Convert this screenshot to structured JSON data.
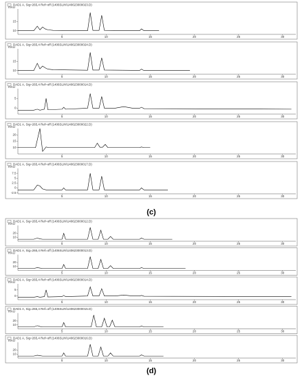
{
  "chart_data": [
    {
      "type": "line",
      "ylabel": "mAU",
      "xlim": [
        0,
        31.5
      ],
      "xticks": [
        5,
        10,
        15,
        20,
        25,
        30
      ],
      "ylim": [
        8,
        22
      ],
      "yticks": [
        10,
        15
      ],
      "series": [
        {
          "name": "DAD1 A, Sig=265,4 Ref=off (1406SLIN\\140623000023.D)",
          "color": "#000000",
          "x": [
            0,
            1.8,
            2.2,
            2.5,
            2.8,
            3.1,
            3.4,
            4,
            7.9,
            8.2,
            8.5,
            9.2,
            9.5,
            9.8,
            13.8,
            14,
            14.3,
            16
          ],
          "values": [
            10,
            10,
            12.5,
            10.5,
            12,
            11,
            10.5,
            10.2,
            10,
            20,
            10.2,
            10.2,
            18.5,
            10.2,
            10,
            11,
            10,
            10
          ]
        }
      ]
    },
    {
      "type": "line",
      "ylabel": "mAU",
      "xlim": [
        0,
        31.5
      ],
      "xticks": [
        5,
        10,
        15,
        20,
        25,
        30
      ],
      "ylim": [
        8,
        22
      ],
      "yticks": [
        10,
        15
      ],
      "series": [
        {
          "name": "DAD1 A, Sig=265,4 Ref=off (1406SLIN\\140623000024.D)",
          "color": "#000000",
          "x": [
            0,
            1.8,
            2.2,
            2.5,
            2.8,
            3.1,
            3.4,
            4,
            7.9,
            8.2,
            8.5,
            9.2,
            9.5,
            9.8,
            13.8,
            14,
            14.3,
            19.5
          ],
          "values": [
            10,
            10,
            14,
            11,
            12.5,
            11.5,
            10.8,
            10.5,
            10.2,
            20,
            10.3,
            10.3,
            17,
            10.3,
            10.1,
            10.8,
            10,
            10
          ]
        }
      ]
    },
    {
      "type": "line",
      "ylabel": "mAU",
      "xlim": [
        0,
        31.5
      ],
      "xticks": [
        5,
        10,
        15,
        20,
        25,
        30
      ],
      "ylim": [
        -3,
        10
      ],
      "yticks": [
        0,
        5
      ],
      "series": [
        {
          "name": "DAD1 A, Sig=265,4 Ref=off (1406SLIN\\140623000014.D)",
          "color": "#000000",
          "x": [
            0,
            1.8,
            2.2,
            2.5,
            3,
            3.2,
            3.4,
            5,
            5.2,
            5.4,
            7.9,
            8.2,
            8.5,
            9.2,
            9.5,
            9.8,
            11,
            12,
            13,
            13.8,
            14,
            14.3,
            31
          ],
          "values": [
            -1,
            -1,
            -0.5,
            -1,
            -0.5,
            5,
            -0.8,
            -0.5,
            0.5,
            -0.5,
            0,
            7.5,
            0,
            0,
            6,
            0,
            0,
            0.8,
            0,
            0,
            0.5,
            -0.2,
            -0.5
          ]
        }
      ]
    },
    {
      "type": "line",
      "ylabel": "mAU",
      "xlim": [
        0,
        31.5
      ],
      "xticks": [
        5,
        10,
        15,
        20,
        25,
        30
      ],
      "ylim": [
        5,
        25
      ],
      "yticks": [
        10,
        15,
        20
      ],
      "series": [
        {
          "name": "DAD1 A, Sig=265,4 Ref=off (1406SLIN\\140623000022.D)",
          "color": "#000000",
          "x": [
            0,
            2,
            2.5,
            2.8,
            3.2,
            3.5,
            8.7,
            9,
            9.3,
            9.6,
            9.9,
            10.2,
            13.8,
            14,
            14.3,
            15
          ],
          "values": [
            10,
            10,
            25,
            7,
            10.5,
            10,
            10,
            13.5,
            10.3,
            10.3,
            12.5,
            10,
            10,
            10.5,
            10,
            10
          ]
        }
      ]
    },
    {
      "type": "line",
      "ylabel": "mAU",
      "xlim": [
        0,
        31.5
      ],
      "xticks": [
        5,
        10,
        15,
        20,
        25,
        30
      ],
      "ylim": [
        -3,
        10
      ],
      "yticks": [
        -2.5,
        0,
        2.5,
        5,
        7.5
      ],
      "series": [
        {
          "name": "DAD1 A, Sig=265,4 Ref=off (1406SLIN\\140623000017.D)",
          "color": "#000000",
          "x": [
            0,
            1.8,
            2.2,
            2.5,
            2.8,
            3.2,
            5,
            5.2,
            5.4,
            7.9,
            8.2,
            8.5,
            9.2,
            9.5,
            9.8,
            13.8,
            14,
            14.3,
            17
          ],
          "values": [
            -1,
            -1,
            1.5,
            1,
            -0.5,
            -1,
            -1,
            0,
            -1,
            -1,
            7.5,
            -1,
            -1,
            6,
            -1,
            -1,
            0,
            -1,
            -1
          ]
        }
      ]
    },
    {
      "type": "line",
      "ylabel": "mAU",
      "xlim": [
        0,
        31.5
      ],
      "xticks": [
        5,
        10,
        15,
        20,
        25,
        30
      ],
      "ylim": [
        0,
        40
      ],
      "yticks": [
        10,
        20
      ],
      "series": [
        {
          "name": "DAD1 A, Sig=265,4 Ref=off (1406SLIN\\140623000012.D)",
          "color": "#000000",
          "x": [
            0,
            1.8,
            2.2,
            2.5,
            2.8,
            5,
            5.2,
            5.4,
            7.9,
            8.2,
            8.5,
            9.1,
            9.4,
            9.7,
            10.2,
            10.5,
            10.8,
            13.8,
            14,
            14.3,
            17.5
          ],
          "values": [
            5,
            5,
            8,
            6,
            5,
            5,
            20,
            5,
            5,
            35,
            5,
            5,
            28,
            5,
            5,
            12,
            5,
            5,
            8,
            5,
            5
          ]
        }
      ]
    },
    {
      "type": "line",
      "ylabel": "mAU",
      "xlim": [
        0,
        31.5
      ],
      "xticks": [
        5,
        10,
        15,
        20,
        25,
        30
      ],
      "ylim": [
        0,
        40
      ],
      "yticks": [
        10,
        20
      ],
      "series": [
        {
          "name": "DAD1 A, Sig=265,4 Ref=off (1406SLIN\\140623000013.D)",
          "color": "#000000",
          "x": [
            0,
            1.8,
            2.2,
            2.5,
            2.8,
            5,
            5.2,
            5.4,
            7.9,
            8.2,
            8.5,
            9.1,
            9.4,
            9.7,
            10.2,
            10.5,
            10.8,
            13.8,
            14,
            14.3,
            19
          ],
          "values": [
            5,
            5,
            7,
            6,
            5,
            5,
            15,
            5,
            5,
            35,
            5,
            5,
            28,
            5,
            5,
            12,
            5,
            5,
            7,
            5,
            5
          ]
        }
      ]
    },
    {
      "type": "line",
      "ylabel": "mAU",
      "xlim": [
        0,
        31.5
      ],
      "xticks": [
        5,
        10,
        15,
        20,
        25,
        30
      ],
      "ylim": [
        -3,
        10
      ],
      "yticks": [
        0,
        5
      ],
      "series": [
        {
          "name": "DAD1 A, Sig=265,4 Ref=off (1406SLIN\\140623000014.D)",
          "color": "#000000",
          "x": [
            0,
            1.8,
            2.2,
            2.5,
            3,
            3.2,
            3.4,
            5,
            5.2,
            5.4,
            7.9,
            8.2,
            8.5,
            9.2,
            9.5,
            9.8,
            11,
            12,
            13,
            13.8,
            14,
            14.3,
            31
          ],
          "values": [
            -1,
            -1,
            -0.5,
            -1,
            -0.5,
            5,
            -0.8,
            -0.5,
            0.5,
            -0.5,
            0,
            7.5,
            0,
            0,
            6,
            0,
            0,
            0.8,
            0,
            0,
            0.5,
            -0.2,
            -0.5
          ]
        }
      ]
    },
    {
      "type": "line",
      "ylabel": "mAU",
      "xlim": [
        0,
        31.5
      ],
      "xticks": [
        5,
        10,
        15,
        20,
        25,
        30
      ],
      "ylim": [
        0,
        40
      ],
      "yticks": [
        10,
        20
      ],
      "series": [
        {
          "name": "DAD1 A, Sig=265,4 Ref=off (1406SLIN\\140623000015.D)",
          "color": "#000000",
          "x": [
            0,
            1.8,
            2.2,
            2.5,
            2.8,
            5,
            5.2,
            5.4,
            8.3,
            8.6,
            8.9,
            9.5,
            9.8,
            10.1,
            10.4,
            10.7,
            11,
            13.8,
            14,
            14.3,
            16.5
          ],
          "values": [
            5,
            5,
            8,
            6,
            5,
            5,
            16,
            5,
            5,
            35,
            5,
            5,
            27,
            5,
            5,
            22,
            5,
            5,
            7,
            5,
            5
          ]
        }
      ]
    },
    {
      "type": "line",
      "ylabel": "mAU",
      "xlim": [
        0,
        31.5
      ],
      "xticks": [
        5,
        10,
        15,
        20,
        25,
        30
      ],
      "ylim": [
        0,
        40
      ],
      "yticks": [
        10,
        20
      ],
      "series": [
        {
          "name": "DAD1 A, Sig=265,4 Ref=off (1406SLIN\\140623000016.D)",
          "color": "#000000",
          "x": [
            0,
            1.8,
            2.2,
            2.5,
            2.8,
            5,
            5.2,
            5.4,
            7.9,
            8.2,
            8.5,
            9.1,
            9.4,
            9.7,
            10.2,
            10.5,
            10.8,
            13.8,
            14,
            14.3,
            16.5
          ],
          "values": [
            5,
            5,
            7,
            6,
            5,
            5,
            13,
            5,
            5,
            35,
            5,
            5,
            28,
            5,
            5,
            13,
            5,
            5,
            8,
            5,
            5
          ]
        }
      ]
    }
  ],
  "captions": {
    "c": "(c)",
    "d": "(d)"
  }
}
